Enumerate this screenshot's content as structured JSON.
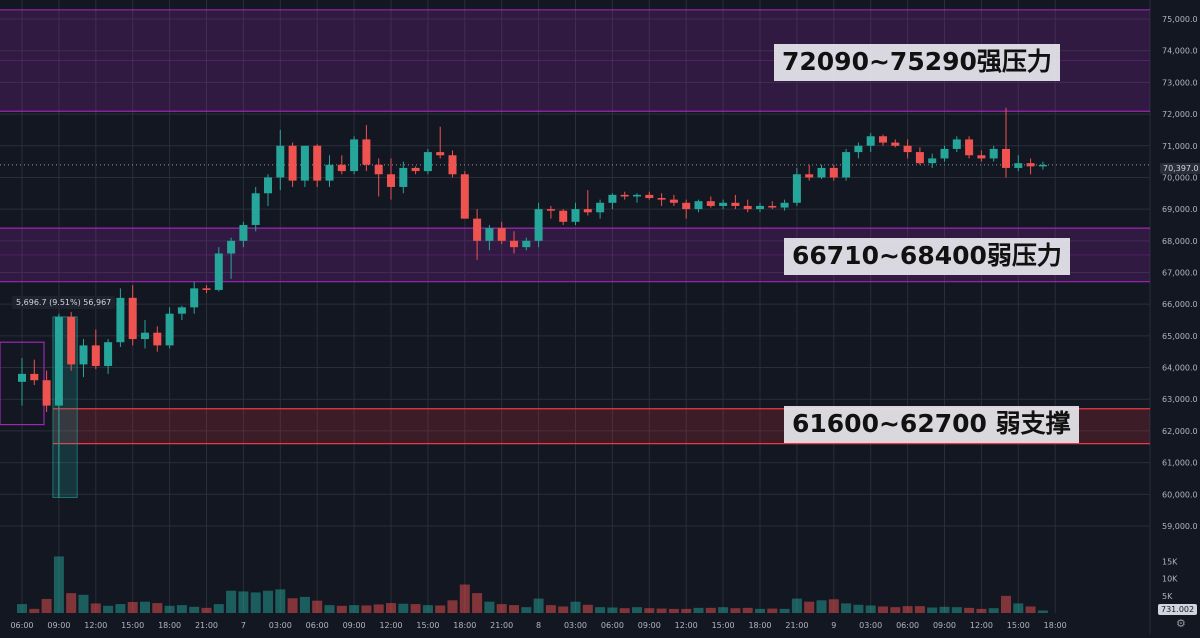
{
  "chart_data": {
    "type": "candlestick",
    "price_axis": {
      "range": [
        58400,
        75600
      ],
      "ticks": [
        "75,000.0",
        "74,000.0",
        "73,000.0",
        "72,000.0",
        "71,000.0",
        "70,000.0",
        "69,000.0",
        "68,000.0",
        "67,000.0",
        "66,000.0",
        "65,000.0",
        "64,000.0",
        "63,000.0",
        "62,000.0",
        "61,000.0",
        "60,000.0",
        "59,000.0"
      ],
      "tick_values": [
        75000,
        74000,
        73000,
        72000,
        71000,
        70000,
        69000,
        68000,
        67000,
        66000,
        65000,
        64000,
        63000,
        62000,
        61000,
        60000,
        59000
      ],
      "last_price_label": "70,397.0",
      "last_price": 70397
    },
    "volume_axis": {
      "ticks": [
        "15K",
        "10K",
        "5K"
      ],
      "tick_values": [
        15000,
        10000,
        5000
      ],
      "max": 17500,
      "last_volume_label": "731.002"
    },
    "time_axis": {
      "labels": [
        "06:00",
        "09:00",
        "12:00",
        "15:00",
        "18:00",
        "21:00",
        "7",
        "03:00",
        "06:00",
        "09:00",
        "12:00",
        "15:00",
        "18:00",
        "21:00",
        "8",
        "03:00",
        "06:00",
        "09:00",
        "12:00",
        "15:00",
        "18:00",
        "21:00",
        "9",
        "03:00",
        "06:00",
        "09:00",
        "12:00",
        "15:00",
        "18:00"
      ],
      "label_bar_index": [
        0,
        3,
        6,
        9,
        12,
        15,
        18,
        21,
        24,
        27,
        30,
        33,
        36,
        39,
        42,
        45,
        48,
        51,
        54,
        57,
        60,
        63,
        66,
        69,
        72,
        75,
        78,
        81,
        84
      ]
    },
    "zones": [
      {
        "label": "72090~75290强压力",
        "low": 72090,
        "high": 75290,
        "color": "#9c27b0",
        "kind": "resistance"
      },
      {
        "label": "66710~68400弱压力",
        "low": 66710,
        "high": 68400,
        "color": "#9c27b0",
        "kind": "resistance"
      },
      {
        "label": "61600~62700 弱支撑",
        "low": 61600,
        "high": 62700,
        "color": "#f23645",
        "kind": "support"
      }
    ],
    "measure": {
      "label": "5,696.7 (9.51%) 56,967",
      "from_price": 59900,
      "to_price": 65600
    },
    "colors": {
      "up": "#26a69a",
      "down": "#ef5350",
      "grid": "#2a2e39",
      "axis_text": "#b2b5be"
    },
    "candles": [
      {
        "o": 63550,
        "h": 64300,
        "l": 62800,
        "c": 63800,
        "v": 2600
      },
      {
        "o": 63800,
        "h": 64250,
        "l": 63450,
        "c": 63600,
        "v": 1200
      },
      {
        "o": 63600,
        "h": 63900,
        "l": 62600,
        "c": 62800,
        "v": 4100
      },
      {
        "o": 62800,
        "h": 65700,
        "l": 59900,
        "c": 65600,
        "v": 16500
      },
      {
        "o": 65600,
        "h": 65750,
        "l": 63900,
        "c": 64100,
        "v": 5800
      },
      {
        "o": 64100,
        "h": 64900,
        "l": 63700,
        "c": 64700,
        "v": 5300
      },
      {
        "o": 64700,
        "h": 65200,
        "l": 63950,
        "c": 64050,
        "v": 2800
      },
      {
        "o": 64050,
        "h": 64900,
        "l": 63800,
        "c": 64800,
        "v": 2100
      },
      {
        "o": 64800,
        "h": 66500,
        "l": 64650,
        "c": 66200,
        "v": 2600
      },
      {
        "o": 66200,
        "h": 66600,
        "l": 64700,
        "c": 64900,
        "v": 3200
      },
      {
        "o": 64900,
        "h": 65500,
        "l": 64600,
        "c": 65100,
        "v": 3300
      },
      {
        "o": 65100,
        "h": 65300,
        "l": 64500,
        "c": 64700,
        "v": 2900
      },
      {
        "o": 64700,
        "h": 65900,
        "l": 64600,
        "c": 65700,
        "v": 2100
      },
      {
        "o": 65700,
        "h": 65950,
        "l": 65500,
        "c": 65900,
        "v": 2300
      },
      {
        "o": 65900,
        "h": 66700,
        "l": 65700,
        "c": 66500,
        "v": 1800
      },
      {
        "o": 66500,
        "h": 66600,
        "l": 66350,
        "c": 66450,
        "v": 1500
      },
      {
        "o": 66450,
        "h": 67800,
        "l": 66400,
        "c": 67600,
        "v": 2600
      },
      {
        "o": 67600,
        "h": 68100,
        "l": 66800,
        "c": 68000,
        "v": 6500
      },
      {
        "o": 68000,
        "h": 68600,
        "l": 67800,
        "c": 68500,
        "v": 6300
      },
      {
        "o": 68500,
        "h": 69700,
        "l": 68300,
        "c": 69500,
        "v": 6000
      },
      {
        "o": 69500,
        "h": 70100,
        "l": 69100,
        "c": 70000,
        "v": 6500
      },
      {
        "o": 70000,
        "h": 71500,
        "l": 69600,
        "c": 71000,
        "v": 6900
      },
      {
        "o": 71000,
        "h": 71100,
        "l": 69700,
        "c": 69900,
        "v": 4300
      },
      {
        "o": 69900,
        "h": 71000,
        "l": 69700,
        "c": 71000,
        "v": 4700
      },
      {
        "o": 71000,
        "h": 71050,
        "l": 69700,
        "c": 69900,
        "v": 3600
      },
      {
        "o": 69900,
        "h": 70700,
        "l": 69700,
        "c": 70400,
        "v": 2300
      },
      {
        "o": 70400,
        "h": 70700,
        "l": 70100,
        "c": 70200,
        "v": 2100
      },
      {
        "o": 70200,
        "h": 71300,
        "l": 70100,
        "c": 71200,
        "v": 2300
      },
      {
        "o": 71200,
        "h": 71650,
        "l": 70200,
        "c": 70400,
        "v": 2200
      },
      {
        "o": 70400,
        "h": 70600,
        "l": 69400,
        "c": 70100,
        "v": 2500
      },
      {
        "o": 70100,
        "h": 70600,
        "l": 69300,
        "c": 69700,
        "v": 2900
      },
      {
        "o": 69700,
        "h": 70500,
        "l": 69500,
        "c": 70300,
        "v": 2700
      },
      {
        "o": 70300,
        "h": 70350,
        "l": 70100,
        "c": 70200,
        "v": 2600
      },
      {
        "o": 70200,
        "h": 70900,
        "l": 70100,
        "c": 70800,
        "v": 2300
      },
      {
        "o": 70800,
        "h": 71600,
        "l": 70600,
        "c": 70700,
        "v": 2200
      },
      {
        "o": 70700,
        "h": 70850,
        "l": 70000,
        "c": 70100,
        "v": 3700
      },
      {
        "o": 70100,
        "h": 70200,
        "l": 68700,
        "c": 68700,
        "v": 8300
      },
      {
        "o": 68700,
        "h": 69000,
        "l": 67400,
        "c": 68000,
        "v": 5800
      },
      {
        "o": 68000,
        "h": 68500,
        "l": 67700,
        "c": 68400,
        "v": 3300
      },
      {
        "o": 68400,
        "h": 68600,
        "l": 67900,
        "c": 68000,
        "v": 2600
      },
      {
        "o": 68000,
        "h": 68300,
        "l": 67600,
        "c": 67800,
        "v": 2300
      },
      {
        "o": 67800,
        "h": 68100,
        "l": 67700,
        "c": 68000,
        "v": 1700
      },
      {
        "o": 68000,
        "h": 69200,
        "l": 67800,
        "c": 69000,
        "v": 4200
      },
      {
        "o": 69000,
        "h": 69100,
        "l": 68700,
        "c": 68950,
        "v": 2300
      },
      {
        "o": 68950,
        "h": 69000,
        "l": 68500,
        "c": 68600,
        "v": 1900
      },
      {
        "o": 68600,
        "h": 69200,
        "l": 68500,
        "c": 69000,
        "v": 3300
      },
      {
        "o": 69000,
        "h": 69600,
        "l": 68800,
        "c": 68900,
        "v": 2400
      },
      {
        "o": 68900,
        "h": 69300,
        "l": 68700,
        "c": 69200,
        "v": 1700
      },
      {
        "o": 69200,
        "h": 69500,
        "l": 69000,
        "c": 69450,
        "v": 1600
      },
      {
        "o": 69450,
        "h": 69550,
        "l": 69300,
        "c": 69400,
        "v": 1400
      },
      {
        "o": 69400,
        "h": 69500,
        "l": 69200,
        "c": 69450,
        "v": 1700
      },
      {
        "o": 69450,
        "h": 69550,
        "l": 69300,
        "c": 69350,
        "v": 1400
      },
      {
        "o": 69350,
        "h": 69500,
        "l": 69100,
        "c": 69300,
        "v": 1300
      },
      {
        "o": 69300,
        "h": 69450,
        "l": 69100,
        "c": 69200,
        "v": 1200
      },
      {
        "o": 69200,
        "h": 69300,
        "l": 68700,
        "c": 69000,
        "v": 1200
      },
      {
        "o": 69000,
        "h": 69300,
        "l": 68900,
        "c": 69250,
        "v": 1500
      },
      {
        "o": 69250,
        "h": 69400,
        "l": 69050,
        "c": 69100,
        "v": 1500
      },
      {
        "o": 69100,
        "h": 69300,
        "l": 69000,
        "c": 69200,
        "v": 1700
      },
      {
        "o": 69200,
        "h": 69450,
        "l": 69000,
        "c": 69100,
        "v": 1400
      },
      {
        "o": 69100,
        "h": 69300,
        "l": 68900,
        "c": 69000,
        "v": 1500
      },
      {
        "o": 69000,
        "h": 69200,
        "l": 68900,
        "c": 69100,
        "v": 1200
      },
      {
        "o": 69100,
        "h": 69250,
        "l": 69000,
        "c": 69050,
        "v": 1300
      },
      {
        "o": 69050,
        "h": 69300,
        "l": 68950,
        "c": 69200,
        "v": 1200
      },
      {
        "o": 69200,
        "h": 70300,
        "l": 69100,
        "c": 70100,
        "v": 4200
      },
      {
        "o": 70100,
        "h": 70400,
        "l": 69900,
        "c": 70000,
        "v": 3300
      },
      {
        "o": 70000,
        "h": 70400,
        "l": 69950,
        "c": 70300,
        "v": 3700
      },
      {
        "o": 70300,
        "h": 70400,
        "l": 69900,
        "c": 70000,
        "v": 4000
      },
      {
        "o": 70000,
        "h": 70900,
        "l": 69900,
        "c": 70800,
        "v": 2800
      },
      {
        "o": 70800,
        "h": 71100,
        "l": 70600,
        "c": 71000,
        "v": 2400
      },
      {
        "o": 71000,
        "h": 71400,
        "l": 70800,
        "c": 71300,
        "v": 2200
      },
      {
        "o": 71300,
        "h": 71350,
        "l": 71000,
        "c": 71100,
        "v": 1900
      },
      {
        "o": 71100,
        "h": 71200,
        "l": 70950,
        "c": 71000,
        "v": 1700
      },
      {
        "o": 71000,
        "h": 71200,
        "l": 70600,
        "c": 70800,
        "v": 2000
      },
      {
        "o": 70800,
        "h": 70950,
        "l": 70400,
        "c": 70450,
        "v": 2000
      },
      {
        "o": 70450,
        "h": 70750,
        "l": 70300,
        "c": 70600,
        "v": 1600
      },
      {
        "o": 70600,
        "h": 71000,
        "l": 70500,
        "c": 70900,
        "v": 1800
      },
      {
        "o": 70900,
        "h": 71300,
        "l": 70800,
        "c": 71200,
        "v": 1700
      },
      {
        "o": 71200,
        "h": 71300,
        "l": 70600,
        "c": 70700,
        "v": 1500
      },
      {
        "o": 70700,
        "h": 70850,
        "l": 70500,
        "c": 70600,
        "v": 1200
      },
      {
        "o": 70600,
        "h": 71000,
        "l": 70500,
        "c": 70900,
        "v": 1400
      },
      {
        "o": 70900,
        "h": 72200,
        "l": 70000,
        "c": 70300,
        "v": 5000
      },
      {
        "o": 70300,
        "h": 70700,
        "l": 70200,
        "c": 70450,
        "v": 2800
      },
      {
        "o": 70450,
        "h": 70600,
        "l": 70100,
        "c": 70350,
        "v": 1900
      },
      {
        "o": 70350,
        "h": 70500,
        "l": 70250,
        "c": 70397,
        "v": 731
      }
    ]
  }
}
